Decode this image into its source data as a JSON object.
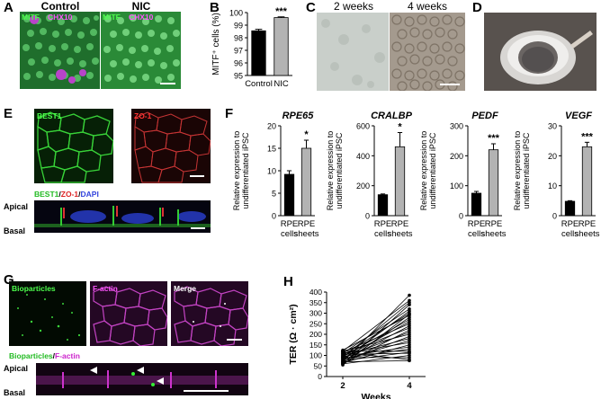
{
  "panels": {
    "A": {
      "letter": "A",
      "titles": [
        "Control",
        "NIC"
      ],
      "ch1": "MITF",
      "ch2": "CHX10"
    },
    "B": {
      "letter": "B"
    },
    "C": {
      "letter": "C",
      "titles": [
        "2 weeks",
        "4 weeks"
      ]
    },
    "D": {
      "letter": "D"
    },
    "E": {
      "letter": "E",
      "labels": {
        "best1": "BEST1",
        "zo1": "ZO-1",
        "merge_best1": "BEST1",
        "merge_zo1": "ZO-1",
        "merge_dapi": "DAPI",
        "sep": "/",
        "apical": "Apical",
        "basal": "Basal"
      }
    },
    "F": {
      "letter": "F"
    },
    "G": {
      "letter": "G",
      "labels": {
        "bio": "Bioparticles",
        "factin": "F-actin",
        "merge": "Merge",
        "m_bio": "Bioparticles",
        "m_factin": "F-actin",
        "sep": "/",
        "apical": "Apical",
        "basal": "Basal"
      }
    },
    "H": {
      "letter": "H"
    }
  },
  "chart_data": [
    {
      "id": "B",
      "type": "bar",
      "categories": [
        "Control",
        "NIC"
      ],
      "values": [
        98.55,
        99.6
      ],
      "errors": [
        0.12,
        0.06
      ],
      "significance": [
        "",
        "***"
      ],
      "ylabel": "MITF⁺ cells (%)",
      "ylim": [
        95,
        100
      ],
      "yticks": [
        "95",
        "96",
        "97",
        "98",
        "99",
        "100"
      ],
      "colors": [
        "#000000",
        "#b3b3b3"
      ]
    },
    {
      "id": "F1",
      "type": "bar",
      "gene": "RPE65",
      "categories": [
        "RPE cells",
        "RPE sheets"
      ],
      "cat_lines": [
        [
          "RPE",
          "cells"
        ],
        [
          "RPE",
          "sheets"
        ]
      ],
      "values": [
        9.2,
        15.0
      ],
      "errors": [
        0.8,
        1.8
      ],
      "significance": [
        "",
        "*"
      ],
      "ylim": [
        0,
        20
      ],
      "yticks": [
        "0",
        "5",
        "10",
        "15",
        "20"
      ],
      "ylabel": [
        "Relative expression to",
        "undifferentiated iPSC"
      ],
      "colors": [
        "#000000",
        "#b3b3b3"
      ]
    },
    {
      "id": "F2",
      "type": "bar",
      "gene": "CRALBP",
      "categories": [
        "RPE cells",
        "RPE sheets"
      ],
      "cat_lines": [
        [
          "RPE",
          "cells"
        ],
        [
          "RPE",
          "sheets"
        ]
      ],
      "values": [
        140,
        460
      ],
      "errors": [
        5,
        95
      ],
      "significance": [
        "",
        "*"
      ],
      "ylim": [
        0,
        600
      ],
      "yticks": [
        "0",
        "200",
        "400",
        "600"
      ],
      "ylabel": [
        "Relative expression to",
        "undifferentiated iPSC"
      ],
      "colors": [
        "#000000",
        "#b3b3b3"
      ]
    },
    {
      "id": "F3",
      "type": "bar",
      "gene": "PEDF",
      "categories": [
        "RPE cells",
        "RPE sheets"
      ],
      "cat_lines": [
        [
          "RPE",
          "cells"
        ],
        [
          "RPE",
          "sheets"
        ]
      ],
      "values": [
        75,
        220
      ],
      "errors": [
        6,
        20
      ],
      "significance": [
        "",
        "***"
      ],
      "ylim": [
        0,
        300
      ],
      "yticks": [
        "0",
        "100",
        "200",
        "300"
      ],
      "ylabel": [
        "Relative expression to",
        "undifferentiated iPSC"
      ],
      "colors": [
        "#000000",
        "#b3b3b3"
      ]
    },
    {
      "id": "F4",
      "type": "bar",
      "gene": "VEGF",
      "categories": [
        "RPE cells",
        "RPE sheets"
      ],
      "cat_lines": [
        [
          "RPE",
          "cells"
        ],
        [
          "RPE",
          "sheets"
        ]
      ],
      "values": [
        4.8,
        23
      ],
      "errors": [
        0.2,
        1.5
      ],
      "significance": [
        "",
        "***"
      ],
      "ylim": [
        0,
        30
      ],
      "yticks": [
        "0",
        "10",
        "20",
        "30"
      ],
      "ylabel": [
        "Relative expression to",
        "undifferentiated iPSC"
      ],
      "colors": [
        "#000000",
        "#b3b3b3"
      ]
    },
    {
      "id": "H",
      "type": "line",
      "xlabel": "Weeks",
      "ylabel": "TER (Ω · cm²)",
      "x": [
        2,
        4
      ],
      "xticks": [
        "2",
        "4"
      ],
      "ylim": [
        0,
        400
      ],
      "yticks": [
        "0",
        "50",
        "100",
        "150",
        "200",
        "250",
        "300",
        "350",
        "400"
      ],
      "series": [
        {
          "values": [
            70,
            385
          ]
        },
        {
          "values": [
            120,
            360
          ]
        },
        {
          "values": [
            90,
            350
          ]
        },
        {
          "values": [
            60,
            340
          ]
        },
        {
          "values": [
            110,
            320
          ]
        },
        {
          "values": [
            80,
            310
          ]
        },
        {
          "values": [
            100,
            300
          ]
        },
        {
          "values": [
            55,
            295
          ]
        },
        {
          "values": [
            125,
            290
          ]
        },
        {
          "values": [
            65,
            280
          ]
        },
        {
          "values": [
            95,
            270
          ]
        },
        {
          "values": [
            85,
            260
          ]
        },
        {
          "values": [
            115,
            250
          ]
        },
        {
          "values": [
            75,
            240
          ]
        },
        {
          "values": [
            105,
            230
          ]
        },
        {
          "values": [
            60,
            220
          ]
        },
        {
          "values": [
            90,
            210
          ]
        },
        {
          "values": [
            120,
            200
          ]
        },
        {
          "values": [
            70,
            190
          ]
        },
        {
          "values": [
            100,
            180
          ]
        },
        {
          "values": [
            80,
            170
          ]
        },
        {
          "values": [
            110,
            160
          ]
        },
        {
          "values": [
            65,
            150
          ]
        },
        {
          "values": [
            95,
            140
          ]
        },
        {
          "values": [
            85,
            130
          ]
        },
        {
          "values": [
            120,
            120
          ]
        },
        {
          "values": [
            75,
            115
          ]
        },
        {
          "values": [
            105,
            110
          ]
        },
        {
          "values": [
            60,
            100
          ]
        },
        {
          "values": [
            90,
            90
          ]
        },
        {
          "values": [
            115,
            80
          ]
        },
        {
          "values": [
            70,
            75
          ]
        }
      ]
    }
  ]
}
